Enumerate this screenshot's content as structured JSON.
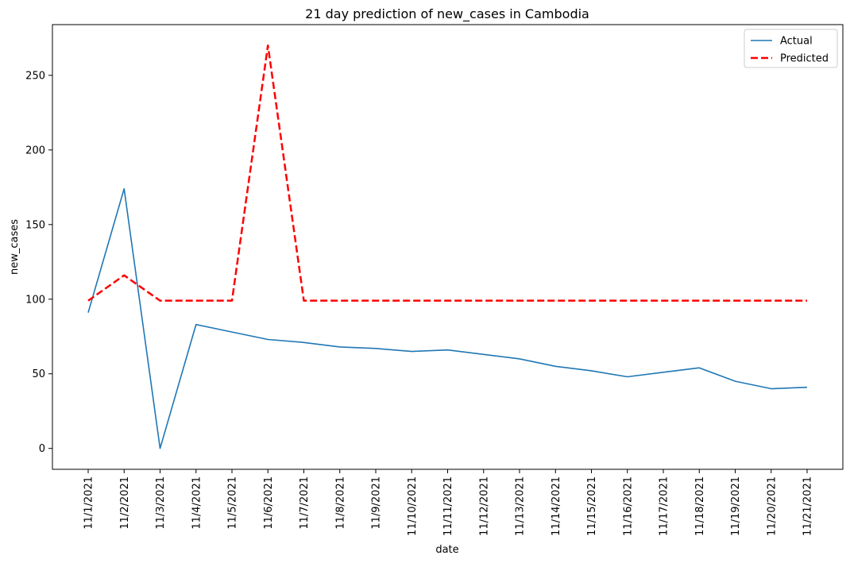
{
  "chart_data": {
    "type": "line",
    "title": "21 day prediction of new_cases in Cambodia",
    "xlabel": "date",
    "ylabel": "new_cases",
    "x": [
      "11/1/2021",
      "11/2/2021",
      "11/3/2021",
      "11/4/2021",
      "11/5/2021",
      "11/6/2021",
      "11/7/2021",
      "11/8/2021",
      "11/9/2021",
      "11/10/2021",
      "11/11/2021",
      "11/12/2021",
      "11/13/2021",
      "11/14/2021",
      "11/15/2021",
      "11/16/2021",
      "11/17/2021",
      "11/18/2021",
      "11/19/2021",
      "11/20/2021",
      "11/21/2021"
    ],
    "series": [
      {
        "name": "Actual",
        "color": "#1f77b4",
        "style": "solid",
        "values": [
          91,
          174,
          0,
          83,
          78,
          73,
          71,
          68,
          67,
          65,
          66,
          63,
          60,
          55,
          52,
          48,
          51,
          54,
          45,
          40,
          41
        ]
      },
      {
        "name": "Predicted",
        "color": "#ff0000",
        "style": "dashed",
        "values": [
          99,
          116,
          99,
          99,
          99,
          270,
          99,
          99,
          99,
          99,
          99,
          99,
          99,
          99,
          99,
          99,
          99,
          99,
          99,
          99,
          99
        ]
      }
    ],
    "yticks": [
      0,
      50,
      100,
      150,
      200,
      250
    ],
    "ylim": [
      -14,
      284
    ],
    "grid": false,
    "legend_position": "top-right"
  }
}
